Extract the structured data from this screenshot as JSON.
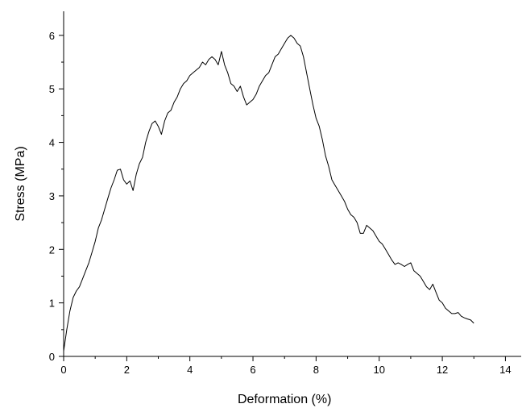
{
  "chart_data": {
    "type": "line",
    "title": "",
    "xlabel": "Deformation (%)",
    "ylabel": "Stress (MPa)",
    "xlim": [
      0,
      14.5
    ],
    "ylim": [
      0,
      6.45
    ],
    "xticks": [
      0,
      2,
      4,
      6,
      8,
      10,
      12,
      14
    ],
    "yticks": [
      0,
      1,
      2,
      3,
      4,
      5,
      6
    ],
    "grid": false,
    "line_color": "#000000",
    "series": [
      {
        "x": [
          0,
          0.1,
          0.2,
          0.3,
          0.4,
          0.5,
          0.6,
          0.7,
          0.8,
          0.9,
          1.0,
          1.1,
          1.2,
          1.3,
          1.4,
          1.5,
          1.6,
          1.7,
          1.8,
          1.9,
          2.0,
          2.1,
          2.2,
          2.3,
          2.4,
          2.5,
          2.6,
          2.7,
          2.8,
          2.9,
          3.0,
          3.1,
          3.2,
          3.3,
          3.4,
          3.5,
          3.6,
          3.7,
          3.8,
          3.9,
          4.0,
          4.1,
          4.2,
          4.3,
          4.4,
          4.5,
          4.6,
          4.7,
          4.8,
          4.9,
          5.0,
          5.1,
          5.2,
          5.3,
          5.4,
          5.5,
          5.6,
          5.7,
          5.8,
          5.9,
          6.0,
          6.1,
          6.2,
          6.3,
          6.4,
          6.5,
          6.6,
          6.7,
          6.8,
          6.9,
          7.0,
          7.1,
          7.2,
          7.3,
          7.4,
          7.5,
          7.6,
          7.7,
          7.8,
          7.9,
          8.0,
          8.1,
          8.2,
          8.3,
          8.4,
          8.5,
          8.6,
          8.7,
          8.8,
          8.9,
          9.0,
          9.1,
          9.2,
          9.3,
          9.4,
          9.5,
          9.6,
          9.7,
          9.8,
          9.9,
          10.0,
          10.1,
          10.2,
          10.3,
          10.4,
          10.5,
          10.6,
          10.7,
          10.8,
          10.9,
          11.0,
          11.1,
          11.2,
          11.3,
          11.4,
          11.5,
          11.6,
          11.7,
          11.8,
          11.9,
          12.0,
          12.1,
          12.2,
          12.3,
          12.4,
          12.5,
          12.6,
          12.7,
          12.8,
          12.9,
          13.0
        ],
        "y": [
          0.1,
          0.5,
          0.85,
          1.1,
          1.22,
          1.3,
          1.45,
          1.6,
          1.75,
          1.95,
          2.15,
          2.4,
          2.55,
          2.75,
          2.95,
          3.15,
          3.3,
          3.48,
          3.5,
          3.3,
          3.22,
          3.28,
          3.1,
          3.4,
          3.6,
          3.72,
          4.0,
          4.2,
          4.35,
          4.4,
          4.3,
          4.15,
          4.4,
          4.55,
          4.6,
          4.75,
          4.85,
          5.0,
          5.1,
          5.15,
          5.25,
          5.3,
          5.35,
          5.4,
          5.5,
          5.45,
          5.55,
          5.6,
          5.55,
          5.45,
          5.7,
          5.45,
          5.3,
          5.1,
          5.05,
          4.95,
          5.05,
          4.85,
          4.7,
          4.75,
          4.8,
          4.9,
          5.05,
          5.15,
          5.25,
          5.3,
          5.45,
          5.6,
          5.65,
          5.75,
          5.85,
          5.95,
          6.0,
          5.95,
          5.85,
          5.8,
          5.6,
          5.3,
          5.0,
          4.7,
          4.45,
          4.3,
          4.05,
          3.75,
          3.55,
          3.3,
          3.2,
          3.1,
          3.0,
          2.9,
          2.75,
          2.65,
          2.6,
          2.5,
          2.3,
          2.3,
          2.45,
          2.4,
          2.35,
          2.25,
          2.15,
          2.1,
          2.0,
          1.9,
          1.8,
          1.72,
          1.75,
          1.72,
          1.68,
          1.72,
          1.75,
          1.6,
          1.55,
          1.5,
          1.4,
          1.3,
          1.25,
          1.35,
          1.2,
          1.05,
          1.0,
          0.9,
          0.85,
          0.8,
          0.8,
          0.82,
          0.75,
          0.72,
          0.7,
          0.68,
          0.62
        ]
      }
    ]
  }
}
